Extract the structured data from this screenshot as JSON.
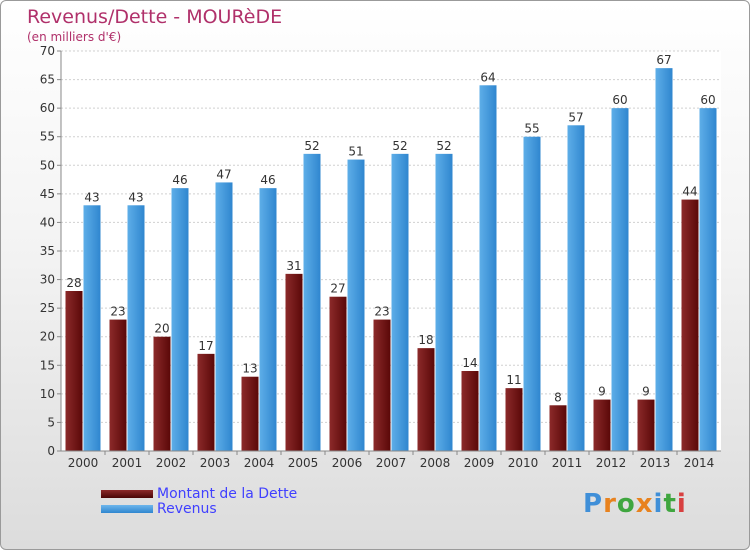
{
  "header": {
    "title": "Revenus/Dette - MOURèDE",
    "subtitle": "(en milliers d'€)"
  },
  "legend": {
    "items": [
      {
        "label": "Montant de la Dette",
        "color": "#6b1414"
      },
      {
        "label": "Revenus",
        "color": "#3f9ae0"
      }
    ]
  },
  "logo": {
    "letters": [
      "P",
      "r",
      "o",
      "x",
      "i",
      "t",
      "i"
    ],
    "colors": [
      "#3f8fd8",
      "#e8821e",
      "#3fa63f",
      "#e8821e",
      "#3f8fd8",
      "#3fa63f",
      "#d84040"
    ]
  },
  "chart_data": {
    "type": "bar",
    "categories": [
      "2000",
      "2001",
      "2002",
      "2003",
      "2004",
      "2005",
      "2006",
      "2007",
      "2008",
      "2009",
      "2010",
      "2011",
      "2012",
      "2013",
      "2014"
    ],
    "series": [
      {
        "name": "Montant de la Dette",
        "color": "#6b1414",
        "values": [
          28,
          23,
          20,
          17,
          13,
          31,
          27,
          23,
          18,
          14,
          11,
          8,
          9,
          9,
          44
        ]
      },
      {
        "name": "Revenus",
        "color": "#3f9ae0",
        "values": [
          43,
          43,
          46,
          47,
          46,
          52,
          51,
          52,
          52,
          64,
          55,
          57,
          60,
          67,
          60
        ]
      }
    ],
    "ylim": [
      0,
      70
    ],
    "yticks": [
      0,
      5,
      10,
      15,
      20,
      25,
      30,
      35,
      40,
      45,
      50,
      55,
      60,
      65,
      70
    ],
    "grid": true,
    "legend_position": "bottom-left"
  }
}
